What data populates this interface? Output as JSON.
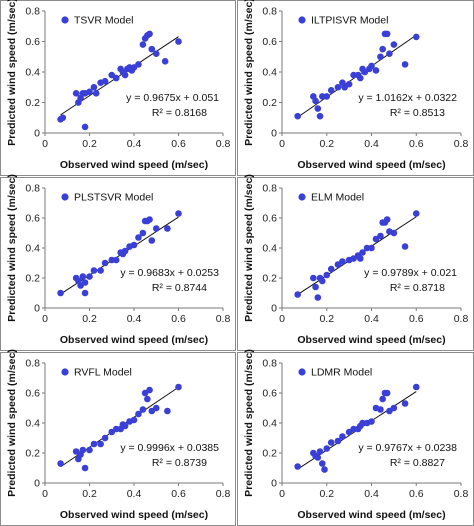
{
  "chart_data": [
    {
      "type": "scatter",
      "legend": "TSVR Model",
      "xlabel": "Observed wind speed (m/sec)",
      "ylabel": "Predicted wind speed (m/sec)",
      "xlim": [
        0,
        0.8
      ],
      "ylim": [
        0,
        0.8
      ],
      "xticks": [
        "0",
        "0.2",
        "0.4",
        "0.6",
        "0.8"
      ],
      "yticks": [
        "0",
        "0.2",
        "0.4",
        "0.6",
        "0.8"
      ],
      "equation": "y = 0.9675x + 0.051",
      "r2_label": "R² = 0.8168",
      "fit": {
        "slope": 0.9675,
        "intercept": 0.051,
        "x_range": [
          0.07,
          0.6
        ]
      },
      "legend_position": "top-left",
      "grid": false,
      "point_color": "#3a3fd6",
      "x": [
        0.07,
        0.08,
        0.14,
        0.15,
        0.16,
        0.17,
        0.18,
        0.18,
        0.2,
        0.22,
        0.23,
        0.25,
        0.27,
        0.3,
        0.32,
        0.34,
        0.35,
        0.36,
        0.37,
        0.38,
        0.39,
        0.4,
        0.42,
        0.44,
        0.45,
        0.46,
        0.47,
        0.48,
        0.5,
        0.54,
        0.6
      ],
      "y": [
        0.09,
        0.1,
        0.26,
        0.2,
        0.23,
        0.26,
        0.04,
        0.26,
        0.27,
        0.3,
        0.26,
        0.33,
        0.34,
        0.38,
        0.36,
        0.42,
        0.4,
        0.38,
        0.42,
        0.43,
        0.41,
        0.43,
        0.45,
        0.58,
        0.62,
        0.64,
        0.65,
        0.55,
        0.52,
        0.47,
        0.6
      ]
    },
    {
      "type": "scatter",
      "legend": "ILTPISVR Model",
      "xlabel": "Observed wind speed (m/sec)",
      "ylabel": "Predicted wind speed (m/sec)",
      "xlim": [
        0,
        0.8
      ],
      "ylim": [
        0,
        0.8
      ],
      "xticks": [
        "0",
        "0.2",
        "0.4",
        "0.6",
        "0.8"
      ],
      "yticks": [
        "0",
        "0.2",
        "0.4",
        "0.6",
        "0.8"
      ],
      "equation": "y = 1.0162x + 0.0322",
      "r2_label": "R² = 0.8513",
      "fit": {
        "slope": 1.0162,
        "intercept": 0.0322,
        "x_range": [
          0.07,
          0.6
        ]
      },
      "legend_position": "top-left",
      "grid": false,
      "point_color": "#3a3fd6",
      "x": [
        0.07,
        0.14,
        0.15,
        0.16,
        0.18,
        0.2,
        0.22,
        0.25,
        0.27,
        0.3,
        0.32,
        0.34,
        0.35,
        0.36,
        0.37,
        0.39,
        0.4,
        0.42,
        0.44,
        0.45,
        0.46,
        0.47,
        0.48,
        0.5,
        0.55,
        0.6,
        0.17,
        0.28
      ],
      "y": [
        0.11,
        0.24,
        0.21,
        0.16,
        0.24,
        0.24,
        0.28,
        0.3,
        0.33,
        0.32,
        0.38,
        0.38,
        0.36,
        0.42,
        0.4,
        0.42,
        0.44,
        0.41,
        0.5,
        0.55,
        0.65,
        0.65,
        0.52,
        0.58,
        0.45,
        0.63,
        0.11,
        0.3
      ]
    },
    {
      "type": "scatter",
      "legend": "PLSTSVR Model",
      "xlabel": "Observed wind speed (m/sec)",
      "ylabel": "Predicted wind speed (m/sec)",
      "xlim": [
        0,
        0.8
      ],
      "ylim": [
        0,
        0.8
      ],
      "xticks": [
        "0",
        "0.2",
        "0.4",
        "0.6",
        "0.8"
      ],
      "yticks": [
        "0",
        "0.2",
        "0.4",
        "0.6",
        "0.8"
      ],
      "equation": "y = 0.9683x + 0.0253",
      "r2_label": "R² = 0.8744",
      "fit": {
        "slope": 0.9683,
        "intercept": 0.0253,
        "x_range": [
          0.07,
          0.6
        ]
      },
      "legend_position": "top-left",
      "grid": false,
      "point_color": "#3a3fd6",
      "x": [
        0.07,
        0.14,
        0.15,
        0.16,
        0.17,
        0.18,
        0.2,
        0.22,
        0.25,
        0.27,
        0.3,
        0.32,
        0.34,
        0.35,
        0.36,
        0.38,
        0.4,
        0.42,
        0.44,
        0.45,
        0.46,
        0.47,
        0.48,
        0.5,
        0.55,
        0.6,
        0.18
      ],
      "y": [
        0.1,
        0.2,
        0.18,
        0.15,
        0.21,
        0.1,
        0.21,
        0.25,
        0.25,
        0.3,
        0.32,
        0.32,
        0.37,
        0.36,
        0.38,
        0.41,
        0.42,
        0.47,
        0.5,
        0.58,
        0.58,
        0.59,
        0.45,
        0.53,
        0.53,
        0.63,
        0.17
      ]
    },
    {
      "type": "scatter",
      "legend": "ELM Model",
      "xlabel": "Observed wind speed (m/sec)",
      "ylabel": "Predicted wind speed (m/sec)",
      "xlim": [
        0,
        0.8
      ],
      "ylim": [
        0,
        0.8
      ],
      "xticks": [
        "0",
        "0.2",
        "0.4",
        "0.6",
        "0.8"
      ],
      "yticks": [
        "0",
        "0.2",
        "0.4",
        "0.6",
        "0.8"
      ],
      "equation": "y = 0.9789x + 0.021",
      "r2_label": "R² = 0.8718",
      "fit": {
        "slope": 0.9789,
        "intercept": 0.021,
        "x_range": [
          0.07,
          0.6
        ]
      },
      "legend_position": "top-left",
      "grid": false,
      "point_color": "#3a3fd6",
      "x": [
        0.07,
        0.14,
        0.15,
        0.16,
        0.17,
        0.18,
        0.2,
        0.22,
        0.25,
        0.27,
        0.3,
        0.32,
        0.34,
        0.35,
        0.36,
        0.38,
        0.4,
        0.42,
        0.44,
        0.45,
        0.46,
        0.47,
        0.48,
        0.5,
        0.55,
        0.6
      ],
      "y": [
        0.09,
        0.2,
        0.14,
        0.07,
        0.2,
        0.18,
        0.22,
        0.26,
        0.29,
        0.31,
        0.32,
        0.33,
        0.35,
        0.33,
        0.37,
        0.4,
        0.4,
        0.46,
        0.48,
        0.57,
        0.57,
        0.59,
        0.51,
        0.5,
        0.41,
        0.63
      ]
    },
    {
      "type": "scatter",
      "legend": "RVFL Model",
      "xlabel": "Observed wind speed (m/sec)",
      "ylabel": "Predicted wind speed (m/sec)",
      "xlim": [
        0,
        0.8
      ],
      "ylim": [
        0,
        0.8
      ],
      "xticks": [
        "0",
        "0.2",
        "0.4",
        "0.6",
        "0.8"
      ],
      "yticks": [
        "0",
        "0.2",
        "0.4",
        "0.6",
        "0.8"
      ],
      "equation": "y = 0.9996x + 0.0385",
      "r2_label": "R² = 0.8739",
      "fit": {
        "slope": 0.9996,
        "intercept": 0.0385,
        "x_range": [
          0.07,
          0.6
        ]
      },
      "legend_position": "top-left",
      "grid": false,
      "point_color": "#3a3fd6",
      "x": [
        0.07,
        0.14,
        0.15,
        0.16,
        0.17,
        0.18,
        0.2,
        0.22,
        0.25,
        0.27,
        0.3,
        0.32,
        0.34,
        0.35,
        0.36,
        0.38,
        0.4,
        0.42,
        0.44,
        0.45,
        0.46,
        0.47,
        0.48,
        0.5,
        0.55,
        0.6
      ],
      "y": [
        0.13,
        0.21,
        0.16,
        0.19,
        0.22,
        0.1,
        0.22,
        0.26,
        0.26,
        0.3,
        0.34,
        0.36,
        0.36,
        0.39,
        0.38,
        0.41,
        0.42,
        0.46,
        0.49,
        0.6,
        0.56,
        0.62,
        0.48,
        0.5,
        0.48,
        0.64
      ]
    },
    {
      "type": "scatter",
      "legend": "LDMR Model",
      "xlabel": "Observed wind speed (m/sec)",
      "ylabel": "Predicted wind speed (m/sec)",
      "xlim": [
        0,
        0.8
      ],
      "ylim": [
        0,
        0.8
      ],
      "xticks": [
        "0",
        "0.2",
        "0.4",
        "0.6",
        "0.8"
      ],
      "yticks": [
        "0",
        "0.2",
        "0.4",
        "0.6",
        "0.8"
      ],
      "equation": "y = 0.9767x + 0.0238",
      "r2_label": "R² = 0.8827",
      "fit": {
        "slope": 0.9767,
        "intercept": 0.0238,
        "x_range": [
          0.07,
          0.6
        ]
      },
      "legend_position": "top-left",
      "grid": false,
      "point_color": "#3a3fd6",
      "x": [
        0.07,
        0.14,
        0.15,
        0.16,
        0.17,
        0.18,
        0.2,
        0.22,
        0.25,
        0.27,
        0.3,
        0.32,
        0.34,
        0.35,
        0.36,
        0.38,
        0.4,
        0.42,
        0.44,
        0.45,
        0.46,
        0.47,
        0.48,
        0.5,
        0.55,
        0.6,
        0.19
      ],
      "y": [
        0.11,
        0.2,
        0.18,
        0.17,
        0.21,
        0.13,
        0.23,
        0.27,
        0.28,
        0.31,
        0.34,
        0.36,
        0.36,
        0.38,
        0.4,
        0.4,
        0.41,
        0.5,
        0.49,
        0.56,
        0.6,
        0.6,
        0.48,
        0.5,
        0.53,
        0.64,
        0.09
      ]
    }
  ]
}
